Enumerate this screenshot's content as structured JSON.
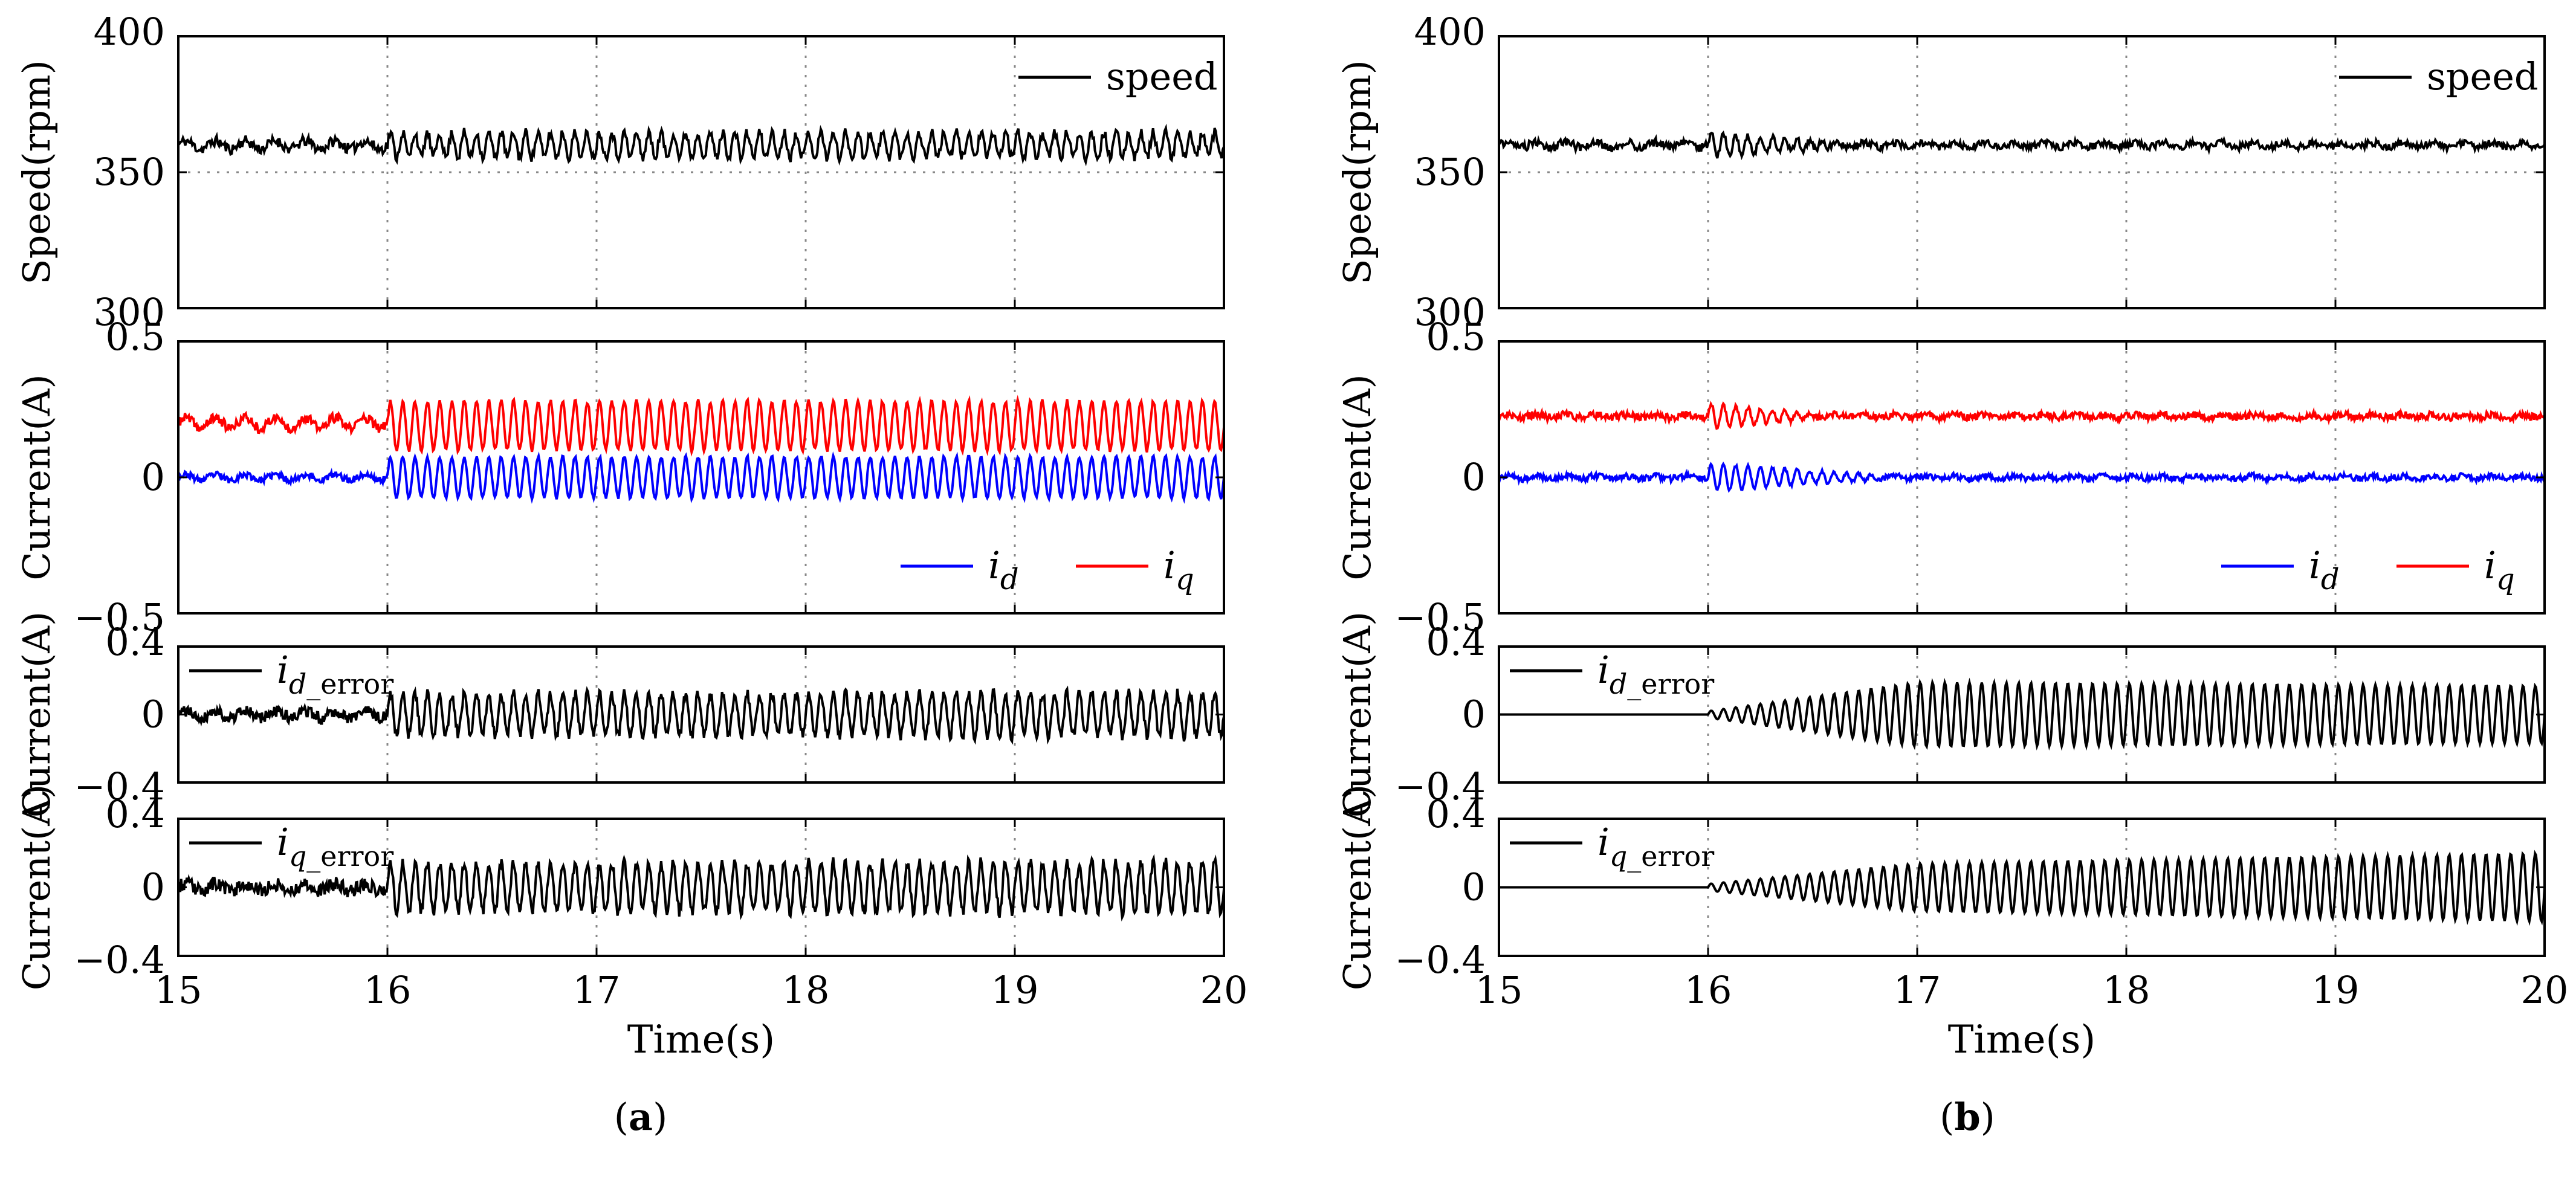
{
  "figure": {
    "panels": [
      "(a)",
      "(b)"
    ]
  },
  "chart_data": [
    {
      "panel": "a",
      "caption_label": "a",
      "x": {
        "label": "Time(s)",
        "range": [
          15,
          20
        ],
        "ticks": [
          "15",
          "16",
          "17",
          "18",
          "19",
          "20"
        ],
        "tick_values": [
          15,
          16,
          17,
          18,
          19,
          20
        ]
      },
      "subplots": [
        {
          "type": "line",
          "ylabel": "Speed(rpm)",
          "ylim": [
            300,
            400
          ],
          "yticks": [
            "300",
            "350",
            "400"
          ],
          "ytick_values": [
            300,
            350,
            400
          ],
          "hgrid_values": [
            350
          ],
          "vgrid_values": [
            16,
            17,
            18,
            19
          ],
          "legend": [
            "speed"
          ],
          "series": [
            {
              "name": "speed",
              "color": "#000000",
              "n": 900,
              "seed": 11,
              "segments": [
                {
                  "t0": 15,
                  "t1": 16,
                  "base": 360,
                  "amp": 1.5,
                  "amp_end": 1.5,
                  "freq": 0,
                  "noise": 2.0
                },
                {
                  "t0": 16,
                  "t1": 20,
                  "base": 360,
                  "amp": 4.5,
                  "amp_end": 4.5,
                  "freq": 17,
                  "noise": 1.8
                }
              ]
            }
          ]
        },
        {
          "type": "line",
          "ylabel": "Current(A)",
          "ylim": [
            -0.5,
            0.5
          ],
          "yticks": [
            "−0.5",
            "0",
            "0.5"
          ],
          "ytick_values": [
            -0.5,
            0,
            0.5
          ],
          "hgrid_values": [],
          "vgrid_values": [
            16,
            17,
            18,
            19
          ],
          "legend": [
            "i_d",
            "i_q"
          ],
          "series": [
            {
              "name": "i_d",
              "color": "#0000ff",
              "n": 1100,
              "seed": 23,
              "segments": [
                {
                  "t0": 15,
                  "t1": 16,
                  "base": 0.0,
                  "amp": 0.01,
                  "amp_end": 0.01,
                  "freq": 0,
                  "noise": 0.012
                },
                {
                  "t0": 16,
                  "t1": 20,
                  "base": 0.0,
                  "amp": 0.075,
                  "amp_end": 0.075,
                  "freq": 17,
                  "noise": 0.006
                }
              ]
            },
            {
              "name": "i_q",
              "color": "#ff0000",
              "n": 1100,
              "seed": 37,
              "segments": [
                {
                  "t0": 15,
                  "t1": 16,
                  "base": 0.2,
                  "amp": 0.02,
                  "amp_end": 0.02,
                  "freq": 0,
                  "noise": 0.018
                },
                {
                  "t0": 16,
                  "t1": 20,
                  "base": 0.19,
                  "amp": 0.09,
                  "amp_end": 0.09,
                  "freq": 17,
                  "noise": 0.008
                }
              ]
            }
          ]
        },
        {
          "type": "line",
          "ylabel": "Current(A)",
          "ylim": [
            -0.4,
            0.4
          ],
          "yticks": [
            "−0.4",
            "0",
            "0.4"
          ],
          "ytick_values": [
            -0.4,
            0,
            0.4
          ],
          "hgrid_values": [],
          "vgrid_values": [
            16,
            17,
            18,
            19
          ],
          "legend": [
            "i_d_error"
          ],
          "series": [
            {
              "name": "i_d_error",
              "color": "#000000",
              "n": 1100,
              "seed": 41,
              "segments": [
                {
                  "t0": 15,
                  "t1": 16,
                  "base": 0.0,
                  "amp": 0.02,
                  "amp_end": 0.02,
                  "freq": 0,
                  "noise": 0.035
                },
                {
                  "t0": 16,
                  "t1": 20,
                  "base": 0.0,
                  "amp": 0.12,
                  "amp_end": 0.13,
                  "freq": 17,
                  "noise": 0.03
                }
              ]
            }
          ]
        },
        {
          "type": "line",
          "ylabel": "Current(A)",
          "ylim": [
            -0.4,
            0.4
          ],
          "yticks": [
            "−0.4",
            "0",
            "0.4"
          ],
          "ytick_values": [
            -0.4,
            0,
            0.4
          ],
          "hgrid_values": [],
          "vgrid_values": [
            16,
            17,
            18,
            19
          ],
          "legend": [
            "i_q_error"
          ],
          "series": [
            {
              "name": "i_q_error",
              "color": "#000000",
              "n": 1100,
              "seed": 53,
              "segments": [
                {
                  "t0": 15,
                  "t1": 16,
                  "base": 0.0,
                  "amp": 0.02,
                  "amp_end": 0.02,
                  "freq": 0,
                  "noise": 0.04
                },
                {
                  "t0": 16,
                  "t1": 20,
                  "base": 0.0,
                  "amp": 0.14,
                  "amp_end": 0.15,
                  "freq": 17,
                  "noise": 0.03
                }
              ]
            }
          ]
        }
      ]
    },
    {
      "panel": "b",
      "caption_label": "b",
      "x": {
        "label": "Time(s)",
        "range": [
          15,
          20
        ],
        "ticks": [
          "15",
          "16",
          "17",
          "18",
          "19",
          "20"
        ],
        "tick_values": [
          15,
          16,
          17,
          18,
          19,
          20
        ]
      },
      "subplots": [
        {
          "type": "line",
          "ylabel": "Speed(rpm)",
          "ylim": [
            300,
            400
          ],
          "yticks": [
            "300",
            "350",
            "400"
          ],
          "ytick_values": [
            300,
            350,
            400
          ],
          "hgrid_values": [
            350
          ],
          "vgrid_values": [
            16,
            17,
            18,
            19
          ],
          "legend": [
            "speed"
          ],
          "series": [
            {
              "name": "speed",
              "color": "#000000",
              "n": 900,
              "seed": 61,
              "segments": [
                {
                  "t0": 15,
                  "t1": 16,
                  "base": 360,
                  "amp": 1.0,
                  "amp_end": 1.0,
                  "freq": 0,
                  "noise": 1.6
                },
                {
                  "t0": 16,
                  "t1": 16.6,
                  "base": 360,
                  "amp": 4.5,
                  "amp_end": 1.0,
                  "freq": 17,
                  "noise": 1.2
                },
                {
                  "t0": 16.6,
                  "t1": 20,
                  "base": 360,
                  "amp": 0.8,
                  "amp_end": 0.8,
                  "freq": 0,
                  "noise": 1.3
                }
              ]
            }
          ]
        },
        {
          "type": "line",
          "ylabel": "Current(A)",
          "ylim": [
            -0.5,
            0.5
          ],
          "yticks": [
            "−0.5",
            "0",
            "0.5"
          ],
          "ytick_values": [
            -0.5,
            0,
            0.5
          ],
          "hgrid_values": [],
          "vgrid_values": [
            16,
            17,
            18,
            19
          ],
          "legend": [
            "i_d",
            "i_q"
          ],
          "series": [
            {
              "name": "i_d",
              "color": "#0000ff",
              "n": 1100,
              "seed": 71,
              "segments": [
                {
                  "t0": 15,
                  "t1": 16,
                  "base": 0.0,
                  "amp": 0.005,
                  "amp_end": 0.005,
                  "freq": 0,
                  "noise": 0.012
                },
                {
                  "t0": 16,
                  "t1": 16.8,
                  "base": 0.0,
                  "amp": 0.05,
                  "amp_end": 0.01,
                  "freq": 17,
                  "noise": 0.006
                },
                {
                  "t0": 16.8,
                  "t1": 20,
                  "base": 0.0,
                  "amp": 0.005,
                  "amp_end": 0.005,
                  "freq": 0,
                  "noise": 0.011
                }
              ]
            },
            {
              "name": "i_q",
              "color": "#ff0000",
              "n": 1100,
              "seed": 83,
              "segments": [
                {
                  "t0": 15,
                  "t1": 16,
                  "base": 0.225,
                  "amp": 0.005,
                  "amp_end": 0.005,
                  "freq": 0,
                  "noise": 0.014
                },
                {
                  "t0": 16,
                  "t1": 16.5,
                  "base": 0.225,
                  "amp": 0.045,
                  "amp_end": 0.01,
                  "freq": 17,
                  "noise": 0.008
                },
                {
                  "t0": 16.5,
                  "t1": 20,
                  "base": 0.225,
                  "amp": 0.005,
                  "amp_end": 0.005,
                  "freq": 0,
                  "noise": 0.013
                }
              ]
            }
          ]
        },
        {
          "type": "line",
          "ylabel": "Current(A)",
          "ylim": [
            -0.4,
            0.4
          ],
          "yticks": [
            "−0.4",
            "0",
            "0.4"
          ],
          "ytick_values": [
            -0.4,
            0,
            0.4
          ],
          "hgrid_values": [],
          "vgrid_values": [
            16,
            17,
            18,
            19
          ],
          "legend": [
            "i_d_error"
          ],
          "series": [
            {
              "name": "i_d_error",
              "color": "#000000",
              "n": 1100,
              "seed": 97,
              "segments": [
                {
                  "t0": 15,
                  "t1": 16,
                  "base": 0.0,
                  "amp": 0.0,
                  "amp_end": 0.0,
                  "freq": 0,
                  "noise": 0.0
                },
                {
                  "t0": 16,
                  "t1": 17,
                  "base": 0.0,
                  "amp": 0.02,
                  "amp_end": 0.19,
                  "freq": 17,
                  "noise": 0.0
                },
                {
                  "t0": 17,
                  "t1": 20,
                  "base": 0.0,
                  "amp": 0.19,
                  "amp_end": 0.17,
                  "freq": 17,
                  "noise": 0.0
                }
              ]
            }
          ]
        },
        {
          "type": "line",
          "ylabel": "Current(A)",
          "ylim": [
            -0.4,
            0.4
          ],
          "yticks": [
            "−0.4",
            "0",
            "0.4"
          ],
          "ytick_values": [
            -0.4,
            0,
            0.4
          ],
          "hgrid_values": [],
          "vgrid_values": [
            16,
            17,
            18,
            19
          ],
          "legend": [
            "i_q_error"
          ],
          "series": [
            {
              "name": "i_q_error",
              "color": "#000000",
              "n": 1100,
              "seed": 101,
              "segments": [
                {
                  "t0": 15,
                  "t1": 16,
                  "base": 0.0,
                  "amp": 0.0,
                  "amp_end": 0.0,
                  "freq": 0,
                  "noise": 0.0
                },
                {
                  "t0": 16,
                  "t1": 17,
                  "base": 0.0,
                  "amp": 0.02,
                  "amp_end": 0.14,
                  "freq": 17,
                  "noise": 0.0
                },
                {
                  "t0": 17,
                  "t1": 20,
                  "base": 0.0,
                  "amp": 0.14,
                  "amp_end": 0.2,
                  "freq": 17,
                  "noise": 0.0
                }
              ]
            }
          ]
        }
      ]
    }
  ]
}
